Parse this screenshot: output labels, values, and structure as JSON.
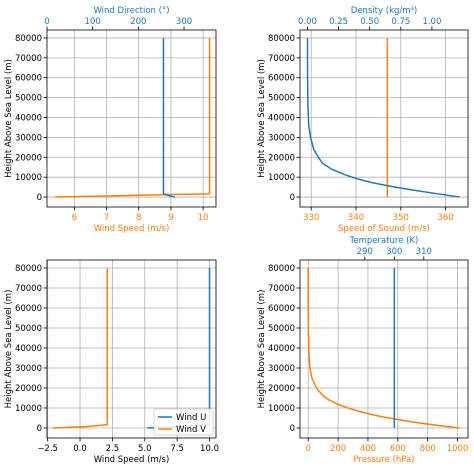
{
  "colors": {
    "blue": "#1f77b4",
    "orange": "#ff7f0e",
    "grid": "#b0b0b0",
    "axis": "#000000",
    "text": "#000000"
  },
  "chart_data": [
    {
      "type": "line",
      "name": "wind-speed-direction",
      "ylabel": "Height Above Sea Level (m)",
      "ylim": [
        -5000,
        84000
      ],
      "yticks": [
        0,
        10000,
        20000,
        30000,
        40000,
        50000,
        60000,
        70000,
        80000
      ],
      "bottom_axis": {
        "label": "Wind Speed (m/s)",
        "color": "orange",
        "lim": [
          5.15,
          10.4
        ],
        "ticks": [
          6,
          7,
          8,
          9,
          10
        ]
      },
      "top_axis": {
        "label": "Wind Direction (°)",
        "color": "blue",
        "lim": [
          0,
          370
        ],
        "ticks": [
          0,
          100,
          200,
          300
        ]
      },
      "grid": true,
      "series": [
        {
          "axis": "bottom",
          "color": "orange",
          "points": [
            [
              5.4,
              0
            ],
            [
              7.0,
              500
            ],
            [
              9.0,
              1300
            ],
            [
              10.2,
              1600
            ],
            [
              10.2,
              80000
            ]
          ]
        },
        {
          "axis": "top",
          "color": "blue",
          "points": [
            [
              280,
              0
            ],
            [
              262,
              1000
            ],
            [
              255,
              1800
            ],
            [
              255,
              80000
            ]
          ]
        }
      ]
    },
    {
      "type": "line",
      "name": "speed-of-sound-density",
      "ylabel": "Height Above Sea Level (m)",
      "ylim": [
        -5000,
        84000
      ],
      "yticks": [
        0,
        10000,
        20000,
        30000,
        40000,
        50000,
        60000,
        70000,
        80000
      ],
      "bottom_axis": {
        "label": "Speed of Sound (m/s)",
        "color": "orange",
        "lim": [
          327.5,
          365
        ],
        "ticks": [
          330,
          340,
          350,
          360
        ]
      },
      "top_axis": {
        "label": "Density (kg/m³)",
        "color": "blue",
        "lim": [
          -0.06,
          1.29
        ],
        "ticks": [
          0.0,
          0.25,
          0.5,
          0.75,
          1.0
        ],
        "ticklabels": [
          "0.00",
          "0.25",
          "0.50",
          "0.75",
          "1.00"
        ]
      },
      "grid": true,
      "series": [
        {
          "axis": "bottom",
          "color": "orange",
          "points": [
            [
              347,
              0
            ],
            [
              347,
              80000
            ]
          ]
        },
        {
          "axis": "top",
          "color": "blue",
          "points": [
            [
              1.225,
              0
            ],
            [
              1.06,
              1500
            ],
            [
              0.85,
              3500
            ],
            [
              0.66,
              5500
            ],
            [
              0.5,
              7500
            ],
            [
              0.41,
              9000
            ],
            [
              0.31,
              11000
            ],
            [
              0.195,
              14000
            ],
            [
              0.12,
              17000
            ],
            [
              0.088,
              20000
            ],
            [
              0.05,
              24000
            ],
            [
              0.025,
              30000
            ],
            [
              0.01,
              36000
            ],
            [
              0.004,
              45000
            ],
            [
              0.001,
              60000
            ],
            [
              0.0001,
              80000
            ]
          ]
        }
      ]
    },
    {
      "type": "line",
      "name": "wind-components",
      "ylabel": "Height Above Sea Level (m)",
      "xlabel": "Wind Speed (m/s)",
      "ylim": [
        -5000,
        84000
      ],
      "yticks": [
        0,
        10000,
        20000,
        30000,
        40000,
        50000,
        60000,
        70000,
        80000
      ],
      "bottom_axis": {
        "label": "Wind Speed (m/s)",
        "color": "black",
        "lim": [
          -2.55,
          10.5
        ],
        "ticks": [
          -2.5,
          0.0,
          2.5,
          5.0,
          7.5,
          10.0
        ],
        "ticklabels": [
          "−2.5",
          "0.0",
          "2.5",
          "5.0",
          "7.5",
          "10.0"
        ]
      },
      "grid": true,
      "legend": {
        "placement": "lower-right",
        "entries": [
          "Wind U",
          "Wind V"
        ]
      },
      "series": [
        {
          "name": "Wind U",
          "color": "blue",
          "points": [
            [
              5.2,
              0
            ],
            [
              7.5,
              600
            ],
            [
              9.8,
              1600
            ],
            [
              10.0,
              1800
            ],
            [
              10.0,
              80000
            ]
          ]
        },
        {
          "name": "Wind V",
          "color": "orange",
          "points": [
            [
              -2.1,
              0
            ],
            [
              0.5,
              700
            ],
            [
              2.1,
              1700
            ],
            [
              2.1,
              80000
            ]
          ]
        }
      ]
    },
    {
      "type": "line",
      "name": "pressure-temperature",
      "ylabel": "Height Above Sea Level (m)",
      "ylim": [
        -5000,
        84000
      ],
      "yticks": [
        0,
        10000,
        20000,
        30000,
        40000,
        50000,
        60000,
        70000,
        80000
      ],
      "bottom_axis": {
        "label": "Pressure (hPa)",
        "color": "orange",
        "lim": [
          -55,
          1070
        ],
        "ticks": [
          0,
          200,
          400,
          600,
          800,
          1000
        ]
      },
      "top_axis": {
        "label": "Temperature (K)",
        "color": "blue",
        "lim": [
          268,
          325
        ],
        "ticks": [
          290,
          300,
          310
        ]
      },
      "grid": true,
      "series": [
        {
          "axis": "bottom",
          "color": "orange",
          "points": [
            [
              1013,
              0
            ],
            [
              900,
              1000
            ],
            [
              795,
              2000
            ],
            [
              700,
              3000
            ],
            [
              620,
              4000
            ],
            [
              540,
              5000
            ],
            [
              470,
              6000
            ],
            [
              410,
              7000
            ],
            [
              355,
              8000
            ],
            [
              265,
              10000
            ],
            [
              195,
              12000
            ],
            [
              140,
              14000
            ],
            [
              100,
              16000
            ],
            [
              55,
              20000
            ],
            [
              25,
              25000
            ],
            [
              12,
              30000
            ],
            [
              5,
              37000
            ],
            [
              1,
              50000
            ],
            [
              0.1,
              65000
            ],
            [
              0.01,
              80000
            ]
          ]
        },
        {
          "axis": "top",
          "color": "blue",
          "points": [
            [
              300,
              0
            ],
            [
              300,
              80000
            ]
          ]
        }
      ]
    }
  ]
}
